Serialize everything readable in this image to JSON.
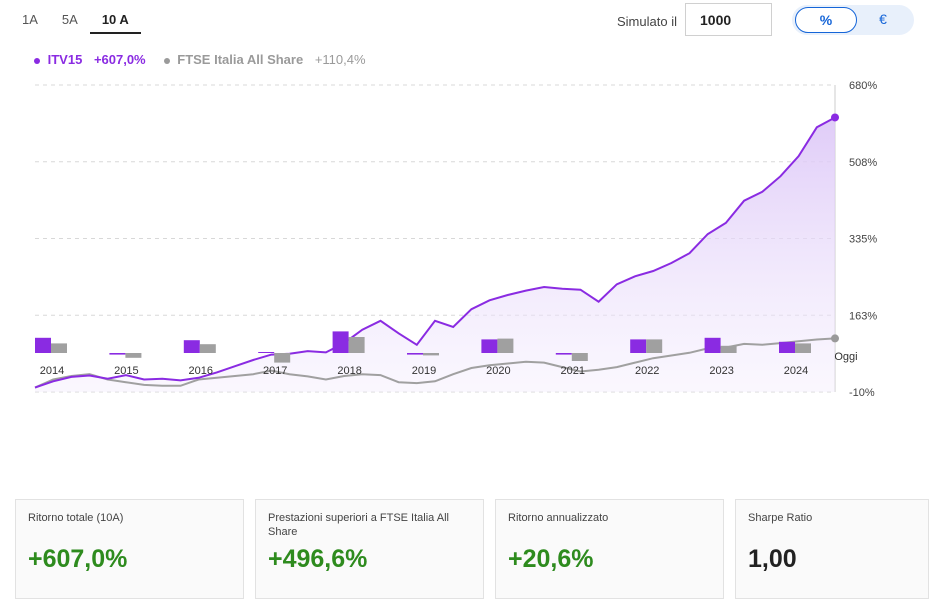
{
  "tabs": [
    "1A",
    "5A",
    "10 A"
  ],
  "simulator": {
    "label": "Simulato il",
    "value": "1000"
  },
  "unit_toggle": {
    "percent": "%",
    "euro": "€"
  },
  "legend": {
    "fund_name": "ITV15",
    "fund_value": "+607,0%",
    "index_name": "FTSE Italia All Share",
    "index_value": "+110,4%"
  },
  "colors": {
    "fund": "#8a2be2",
    "index": "#a0a0a0",
    "fund_fill": "#ede0fb",
    "positive": "#2e8b1e",
    "accent": "#1565d8"
  },
  "chart_data": {
    "type": "line",
    "y_ticks": [
      "680%",
      "508%",
      "335%",
      "163%",
      "-10%"
    ],
    "ylim": [
      -10,
      680
    ],
    "x": [
      2014.0,
      2014.25,
      2014.5,
      2014.75,
      2015.0,
      2015.25,
      2015.5,
      2015.75,
      2016.0,
      2016.25,
      2016.5,
      2016.75,
      2017.0,
      2017.25,
      2017.5,
      2017.75,
      2018.0,
      2018.25,
      2018.5,
      2018.75,
      2019.0,
      2019.25,
      2019.5,
      2019.75,
      2020.0,
      2020.25,
      2020.5,
      2020.75,
      2021.0,
      2021.25,
      2021.5,
      2021.75,
      2022.0,
      2022.25,
      2022.5,
      2022.75,
      2023.0,
      2023.25,
      2023.5,
      2023.75,
      2024.0,
      2024.25,
      2024.5,
      2024.75,
      2025.0
    ],
    "series": [
      {
        "name": "ITV15",
        "values": [
          0,
          14,
          24,
          27,
          20,
          28,
          18,
          20,
          16,
          22,
          34,
          48,
          62,
          74,
          76,
          82,
          79,
          100,
          130,
          150,
          122,
          96,
          150,
          136,
          176,
          196,
          208,
          218,
          226,
          222,
          220,
          193,
          232,
          250,
          262,
          280,
          302,
          345,
          370,
          420,
          440,
          475,
          520,
          585,
          607
        ]
      },
      {
        "name": "FTSE Italia All Share",
        "values": [
          0,
          18,
          26,
          30,
          18,
          12,
          6,
          4,
          4,
          18,
          22,
          26,
          30,
          38,
          30,
          25,
          18,
          26,
          30,
          28,
          12,
          10,
          14,
          30,
          44,
          50,
          54,
          58,
          56,
          46,
          36,
          40,
          46,
          56,
          66,
          72,
          78,
          88,
          90,
          98,
          96,
          100,
          104,
          108,
          110.4
        ]
      }
    ],
    "x_tick_labels": [
      "2014",
      "2015",
      "2016",
      "2017",
      "2018",
      "2019",
      "2020",
      "2021",
      "2022",
      "2023",
      "2024",
      "Oggi"
    ],
    "annual_returns": {
      "fund": [
        19,
        -2,
        16,
        0,
        27,
        -2,
        17,
        -2,
        17,
        19,
        14
      ],
      "index": [
        12,
        -6,
        11,
        -12,
        20,
        -3,
        18,
        -10,
        17,
        9,
        12
      ]
    }
  },
  "stats": [
    {
      "label": "Ritorno totale (10A)",
      "value": "+607,0%"
    },
    {
      "label": "Prestazioni superiori a FTSE Italia All Share",
      "value": "+496,6%"
    },
    {
      "label": "Ritorno annualizzato",
      "value": "+20,6%"
    },
    {
      "label": "Sharpe Ratio",
      "value": "1,00"
    }
  ]
}
